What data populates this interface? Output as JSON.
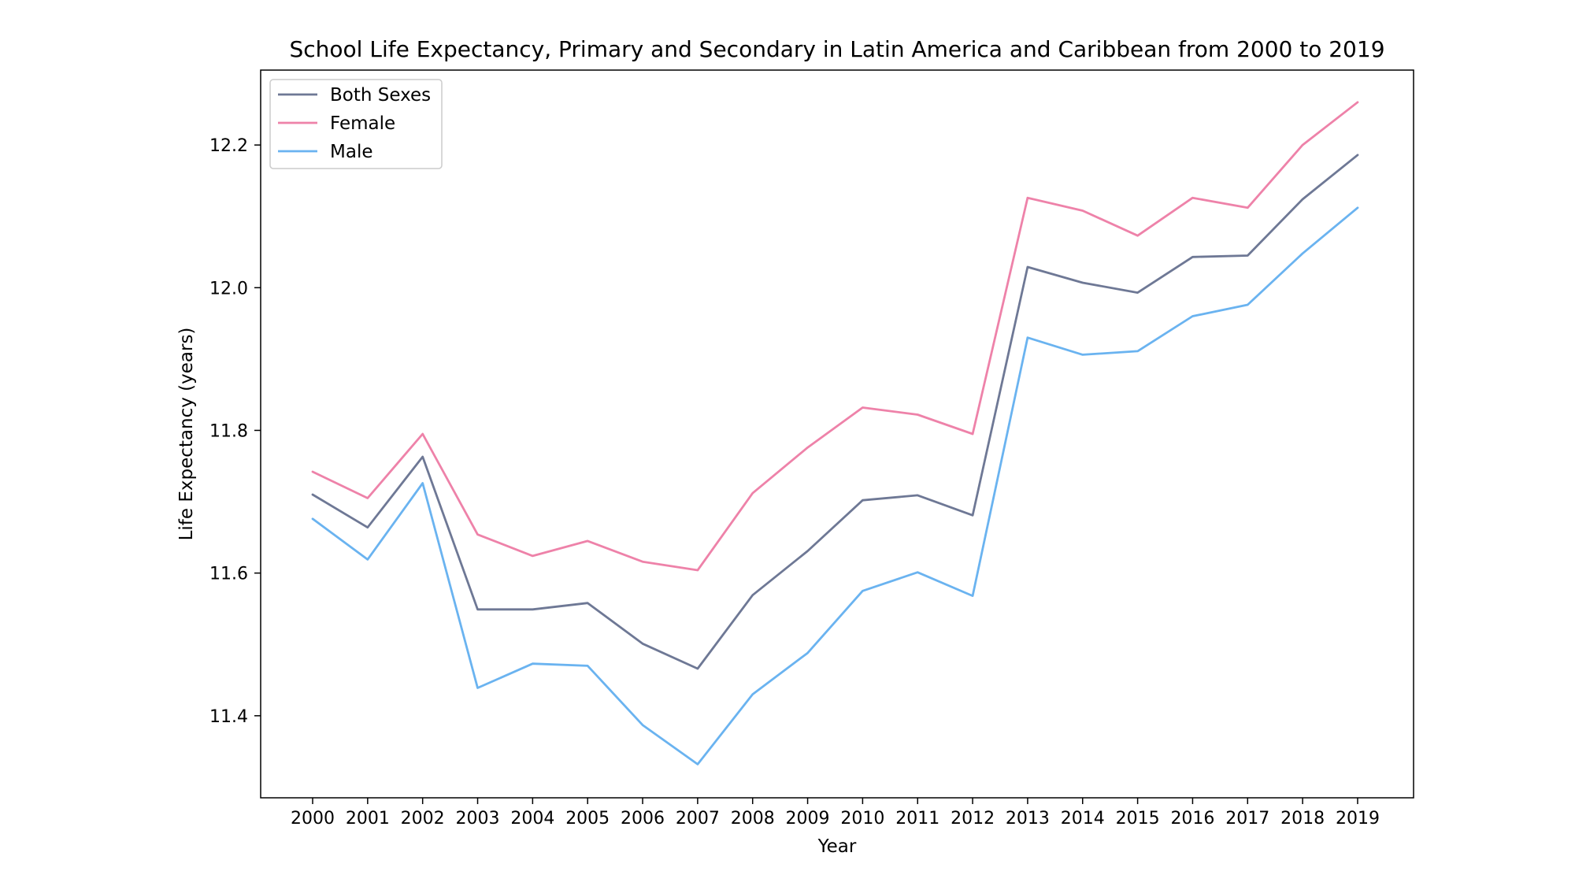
{
  "chart_data": {
    "type": "line",
    "title": "School Life Expectancy, Primary and Secondary in Latin America and Caribbean from 2000 to 2019",
    "xlabel": "Year",
    "ylabel": "Life Expectancy (years)",
    "x": [
      "2000",
      "2001",
      "2002",
      "2003",
      "2004",
      "2005",
      "2006",
      "2007",
      "2008",
      "2009",
      "2010",
      "2011",
      "2012",
      "2013",
      "2014",
      "2015",
      "2016",
      "2017",
      "2018",
      "2019"
    ],
    "ylim": [
      11.285,
      12.305
    ],
    "yticks": [
      "11.4",
      "11.6",
      "11.8",
      "12.0",
      "12.2"
    ],
    "grid": false,
    "legend_position": "top-left",
    "series": [
      {
        "name": "Both Sexes",
        "color": "#6e7895",
        "values": [
          11.71,
          11.664,
          11.763,
          11.549,
          11.549,
          11.558,
          11.501,
          11.466,
          11.569,
          11.631,
          11.702,
          11.709,
          11.681,
          12.029,
          12.007,
          11.993,
          12.043,
          12.045,
          12.124,
          12.186
        ]
      },
      {
        "name": "Female",
        "color": "#ee82a9",
        "values": [
          11.742,
          11.705,
          11.795,
          11.654,
          11.624,
          11.645,
          11.616,
          11.604,
          11.712,
          11.776,
          11.832,
          11.822,
          11.795,
          12.126,
          12.108,
          12.073,
          12.126,
          12.112,
          12.2,
          12.26
        ]
      },
      {
        "name": "Male",
        "color": "#6ab3f0",
        "values": [
          11.676,
          11.619,
          11.726,
          11.439,
          11.473,
          11.47,
          11.387,
          11.332,
          11.43,
          11.488,
          11.575,
          11.601,
          11.568,
          11.93,
          11.906,
          11.911,
          11.96,
          11.976,
          12.048,
          12.112
        ]
      }
    ]
  }
}
